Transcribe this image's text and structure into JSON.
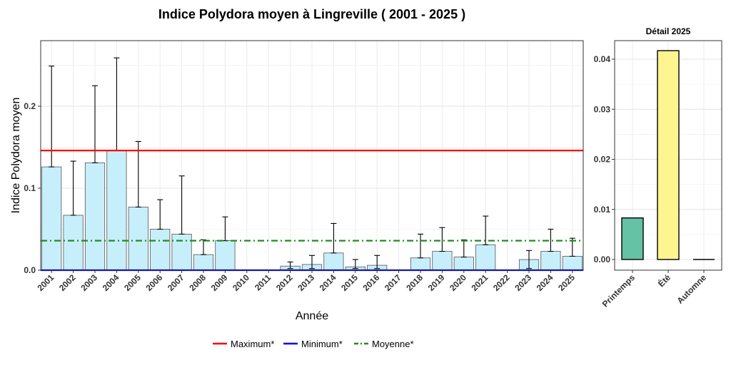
{
  "title": "Indice Polydora moyen à Lingreville ( 2001 - 2025 )",
  "chart_data": [
    {
      "type": "bar",
      "title": "Indice Polydora moyen à Lingreville ( 2001 - 2025 )",
      "xlabel": "Année",
      "ylabel": "Indice Polydora moyen",
      "ylim": [
        0,
        0.28
      ],
      "yticks": [
        0.0,
        0.1,
        0.2
      ],
      "ytick_labels": [
        "0.0",
        "0.1",
        "0.2"
      ],
      "grid": true,
      "bar_color": "#c6eefb",
      "categories": [
        "2001",
        "2002",
        "2003",
        "2004",
        "2005",
        "2006",
        "2007",
        "2008",
        "2009",
        "2010",
        "2011",
        "2012",
        "2013",
        "2014",
        "2015",
        "2016",
        "2017",
        "2018",
        "2019",
        "2020",
        "2021",
        "2022",
        "2023",
        "2024",
        "2025"
      ],
      "values": [
        0.126,
        0.067,
        0.131,
        0.146,
        0.077,
        0.05,
        0.044,
        0.019,
        0.036,
        0,
        0,
        0.005,
        0.007,
        0.021,
        0.004,
        0.006,
        0,
        0.015,
        0.023,
        0.016,
        0.031,
        0,
        0.013,
        0.023,
        0.017
      ],
      "error_upper": [
        0.249,
        0.133,
        0.225,
        0.259,
        0.157,
        0.086,
        0.115,
        0.037,
        0.065,
        null,
        null,
        0.01,
        0.018,
        0.057,
        0.013,
        0.018,
        null,
        0.044,
        0.052,
        0.037,
        0.066,
        null,
        0.024,
        0.05,
        0.039
      ],
      "error_lower": [
        0.126,
        0.067,
        0.131,
        0.146,
        0.077,
        0.05,
        0.044,
        0.019,
        0.036,
        null,
        null,
        0.002,
        0.002,
        0.021,
        0.002,
        0.002,
        null,
        0.015,
        0.023,
        0.016,
        0.031,
        null,
        0.002,
        0.023,
        0.017
      ],
      "reference_lines": [
        {
          "name": "Maximum*",
          "value": 0.146,
          "color": "#ff0000",
          "style": "solid"
        },
        {
          "name": "Minimum*",
          "value": 0.0,
          "color": "#0000ff",
          "style": "solid"
        },
        {
          "name": "Moyenne*",
          "value": 0.036,
          "color": "#228b22",
          "style": "dashdot"
        }
      ],
      "legend": {
        "placement": "bottom",
        "entries": [
          "Maximum*",
          "Minimum*",
          "Moyenne*"
        ]
      }
    },
    {
      "type": "bar",
      "title": "Détail 2025",
      "categories": [
        "Printemps",
        "Été",
        "Automne"
      ],
      "values": [
        0.0083,
        0.0417,
        0.0
      ],
      "colors": [
        "#66c2a5",
        "#fff590",
        "#e8e8e8"
      ],
      "ylim": [
        0,
        0.044
      ],
      "yticks": [
        0.0,
        0.01,
        0.02,
        0.03,
        0.04
      ],
      "ytick_labels": [
        "0.00",
        "0.01",
        "0.02",
        "0.03",
        "0.04"
      ],
      "grid": true
    }
  ]
}
